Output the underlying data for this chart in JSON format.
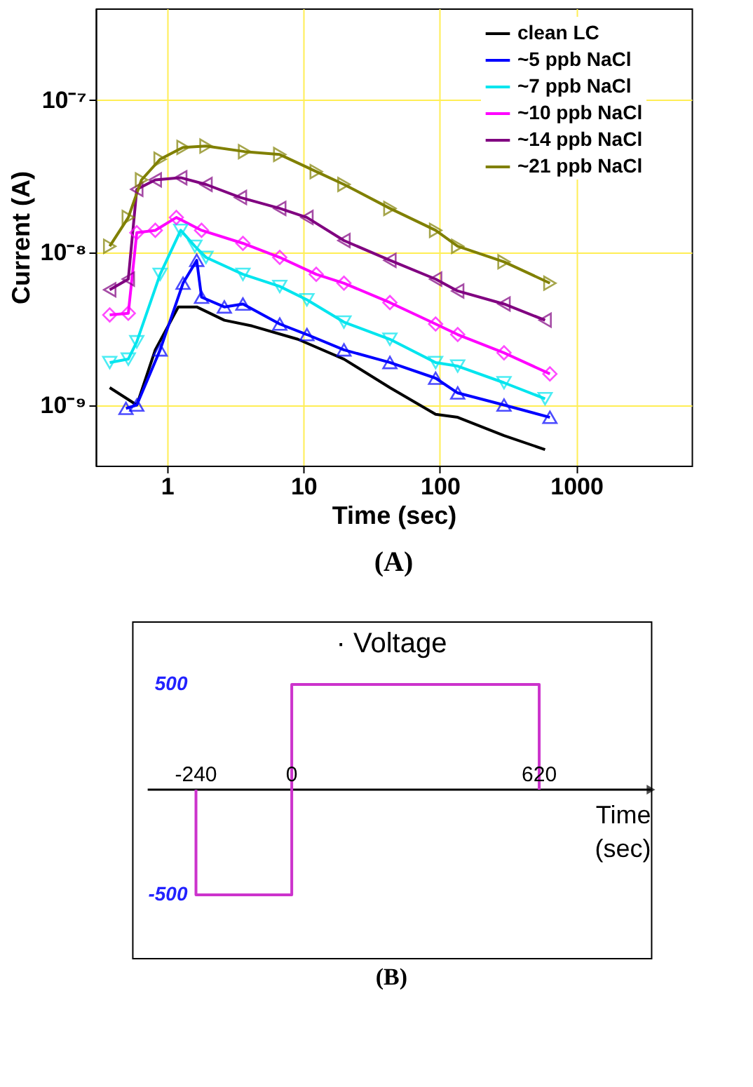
{
  "chart_data": [
    {
      "type": "line",
      "xlabel": "Time (sec)",
      "ylabel": "Current (A)",
      "log": "xy",
      "xlim": [
        0.3,
        7000
      ],
      "ylim": [
        4e-10,
        4e-07
      ],
      "xticks": [
        1,
        10,
        100,
        1000
      ],
      "yticks": [
        {
          "value": 1e-09,
          "label": "10⁻⁹"
        },
        {
          "value": 1e-08,
          "label": "10⁻⁸"
        },
        {
          "value": 1e-07,
          "label": "10⁻⁷"
        }
      ],
      "grid": true,
      "legend": "top right",
      "annotations": [
        "(A)"
      ],
      "series": [
        {
          "name": "clean LC",
          "color": "#000000",
          "marker": "none",
          "x": [
            0.38,
            0.6,
            0.82,
            1.21,
            1.65,
            2.63,
            4.2,
            9.1,
            19.8,
            43,
            93,
            135,
            295,
            590
          ],
          "values": [
            1.3e-09,
            1e-09,
            2.3e-09,
            4.4e-09,
            4.4e-09,
            3.6e-09,
            3.3e-09,
            2.7e-09,
            2e-09,
            1.3e-09,
            8.7e-10,
            8.3e-10,
            6.3e-10,
            5.1e-10
          ]
        },
        {
          "name": "~5 ppb NaCl",
          "color": "#0000ff",
          "marker": "triangle-up",
          "x": [
            0.5,
            0.6,
            0.89,
            1.31,
            1.65,
            1.79,
            2.63,
            3.6,
            6.7,
            10.6,
            19.8,
            43,
            93,
            135,
            295,
            640
          ],
          "values": [
            9.5e-10,
            1e-09,
            2.3e-09,
            6.3e-09,
            8.9e-09,
            5.1e-09,
            4.4e-09,
            4.6e-09,
            3.4e-09,
            2.9e-09,
            2.3e-09,
            1.9e-09,
            1.5e-09,
            1.2e-09,
            1e-09,
            8.3e-10
          ]
        },
        {
          "name": "~7 ppb NaCl",
          "color": "#00e5ee",
          "marker": "triangle-down",
          "x": [
            0.38,
            0.52,
            0.6,
            0.89,
            1.26,
            1.6,
            1.93,
            3.6,
            6.7,
            10.6,
            19.8,
            43,
            93,
            135,
            295,
            590
          ],
          "values": [
            1.9e-09,
            2e-09,
            2.6e-09,
            7.2e-09,
            1.4e-08,
            1.1e-08,
            9.3e-09,
            7.2e-09,
            6e-09,
            4.9e-09,
            3.5e-09,
            2.7e-09,
            1.9e-09,
            1.8e-09,
            1.4e-09,
            1.1e-09
          ]
        },
        {
          "name": "~10 ppb NaCl",
          "color": "#ff00ff",
          "marker": "diamond",
          "x": [
            0.38,
            0.52,
            0.6,
            0.82,
            1.17,
            1.79,
            3.6,
            6.7,
            12.4,
            19.8,
            43,
            93,
            135,
            295,
            640
          ],
          "values": [
            3.9e-09,
            4e-09,
            1.35e-08,
            1.4e-08,
            1.7e-08,
            1.4e-08,
            1.15e-08,
            9.3e-09,
            7.2e-09,
            6.3e-09,
            4.7e-09,
            3.4e-09,
            2.9e-09,
            2.2e-09,
            1.6e-09
          ]
        },
        {
          "name": "~14 ppb NaCl",
          "color": "#800080",
          "marker": "triangle-left",
          "x": [
            0.38,
            0.52,
            0.6,
            0.82,
            1.26,
            1.93,
            3.45,
            6.7,
            10.6,
            19.8,
            43,
            93,
            135,
            295,
            590
          ],
          "values": [
            5.7e-09,
            6.7e-09,
            2.6e-08,
            3e-08,
            3.1e-08,
            2.8e-08,
            2.3e-08,
            1.95e-08,
            1.7e-08,
            1.2e-08,
            8.9e-09,
            6.7e-09,
            5.6e-09,
            4.6e-09,
            3.6e-09
          ]
        },
        {
          "name": "~21 ppb NaCl",
          "color": "#808000",
          "marker": "triangle-right",
          "x": [
            0.38,
            0.52,
            0.65,
            0.89,
            1.31,
            1.93,
            3.7,
            6.7,
            12.4,
            19.8,
            43,
            93,
            135,
            295,
            640
          ],
          "values": [
            1.1e-08,
            1.7e-08,
            3e-08,
            4.1e-08,
            4.9e-08,
            5e-08,
            4.6e-08,
            4.4e-08,
            3.4e-08,
            2.8e-08,
            1.95e-08,
            1.4e-08,
            1.1e-08,
            8.7e-09,
            6.3e-09
          ]
        }
      ]
    },
    {
      "type": "line",
      "title": "· Voltage",
      "xlabel": "Time (sec)",
      "xlim": [
        -400,
        900
      ],
      "ylim": [
        -800,
        800
      ],
      "xticks": [
        -240,
        0,
        620
      ],
      "yticks": [
        {
          "value": -500,
          "label": "-500"
        },
        {
          "value": 500,
          "label": "500"
        }
      ],
      "grid": false,
      "legend": false,
      "annotations": [
        "(B)"
      ],
      "series": [
        {
          "color": "#cc33cc",
          "x": [
            -240,
            -240,
            0,
            0,
            620,
            620
          ],
          "values": [
            0,
            -500,
            -500,
            500,
            500,
            0
          ]
        }
      ]
    }
  ]
}
